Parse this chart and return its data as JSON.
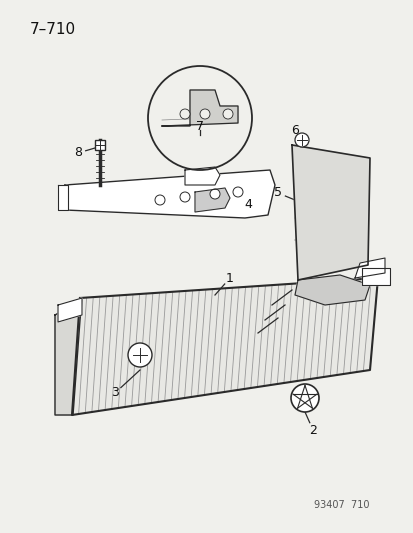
{
  "title": "7–710",
  "footer": "93407  710",
  "bg": "#f0f0ec",
  "lc": "#2a2a2a",
  "tc": "#111111",
  "gray": "#888888"
}
